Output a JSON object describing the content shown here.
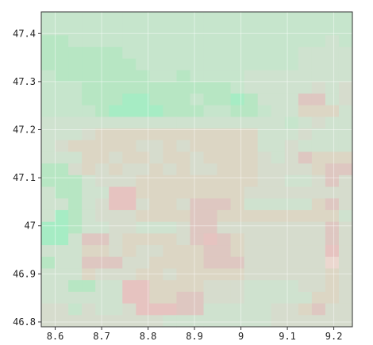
{
  "chart_data": {
    "type": "heatmap",
    "title": "",
    "xlabel": "",
    "ylabel": "",
    "xlim": [
      8.57,
      9.24
    ],
    "ylim": [
      46.79,
      47.445
    ],
    "x_ticks": [
      "8.6",
      "8.7",
      "8.8",
      "8.9",
      "9",
      "9.1",
      "9.2"
    ],
    "y_ticks": [
      "47.4",
      "47.3",
      "47.2",
      "47.1",
      "47",
      "46.9",
      "46.8"
    ],
    "x_tick_values": [
      8.6,
      8.7,
      8.8,
      8.9,
      9.0,
      9.1,
      9.2
    ],
    "y_tick_values": [
      47.4,
      47.3,
      47.2,
      47.1,
      47.0,
      46.9,
      46.8
    ],
    "grid": true,
    "legend": "none",
    "palette": {
      "G": "#b7e6c3",
      "g": "#c6e5cc",
      "L": "#cfe2cf",
      "N": "#d6dccd",
      "T": "#dcd6c4",
      "P": "#dec7c1",
      "R": "#e6c3c0",
      "E": "#ebd7cf",
      "A": "#a6ecc4"
    },
    "grid_rows": [
      "ggggggggggggggggggggggg",
      "ggggggggggggggggggggggg",
      "GGgggggggggggggggggggLg",
      "GGGGGGgggggggggggggLLLL",
      "GGGGGGGggggggggggggLLLL",
      "gGGGGGGGggGggggLLLLLLLL",
      "gggGGGGGGGGGGGgLLLLLNLN",
      "gggGGGAAGGGgGGAGLLLPPLN",
      "ggggGAAAAGGGggGGgLLTTTL",
      "LLLLLLLLLLLLLLLLLLgLNLL",
      "LLLNTTTTTTTTTTTTLLLNLLL",
      "LNTTTTTNNTNTTTTTLLNLLLL",
      "LLLTTNTTNTTNTTTTNLNPTTT",
      "GGNTNTNNTNTNNTTTNNNNTPP",
      "GGGLNNNTTTTTTTTTNNLLNPN",
      "LGGLLRRTTTTTTTTNNNNNNNN",
      "LLGLNRRNTTNPPPTLLLLLTPN",
      "LAGLNNNTTTTPPTTTTTTTTTL",
      "AAGLLNNLLLNPPNNNNNNNNPN",
      "AALPPNTTTTNPRPTNNNNNNPN",
      "LLLTTNTNNTTTPPTNNNNNNRN",
      "GLLPPPNNTTTTPPPNNNNNNEN",
      "LLLTNNNTTNTTTTTNNNNNNTN",
      "LLGGLLRRTTTTNNNLLLLNNTN",
      "LLLLLLRRTTPPNNNLLLLLTTN",
      "NNgNLLNRRRPPLLLLLNNTPNN",
      "NNNNNNNNNLLLLLLLLNNNNNN"
    ]
  }
}
